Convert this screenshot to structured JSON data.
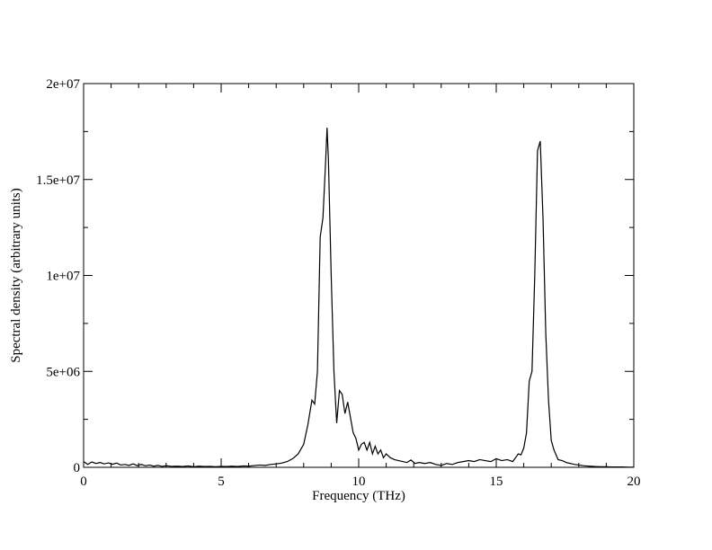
{
  "chart_data": {
    "type": "line",
    "title": "",
    "xlabel": "Frequency (THz)",
    "ylabel": "Spectral density (arbitrary units)",
    "xlim": [
      0,
      20
    ],
    "ylim": [
      0,
      20000000
    ],
    "grid": false,
    "x_ticks": [
      0,
      5,
      10,
      15,
      20
    ],
    "x_tick_labels": [
      "0",
      "5",
      "10",
      "15",
      "20"
    ],
    "y_ticks": [
      0,
      5000000,
      10000000,
      15000000,
      20000000
    ],
    "y_tick_labels": [
      "0",
      "5e+06",
      "1e+07",
      "1.5e+07",
      "2e+07"
    ],
    "x_minor_step": 1,
    "y_minor_step": 2500000,
    "line_color": "#000000",
    "series": [
      {
        "x": [
          0,
          0.15,
          0.3,
          0.45,
          0.6,
          0.75,
          0.9,
          1.05,
          1.2,
          1.35,
          1.5,
          1.65,
          1.8,
          1.95,
          2.1,
          2.25,
          2.4,
          2.55,
          2.7,
          2.85,
          3.0,
          3.2,
          3.4,
          3.6,
          3.8,
          4.0,
          4.2,
          4.4,
          4.6,
          4.8,
          5.0,
          5.2,
          5.4,
          5.6,
          5.8,
          6.0,
          6.2,
          6.4,
          6.6,
          6.8,
          7.0,
          7.2,
          7.4,
          7.6,
          7.8,
          8.0,
          8.15,
          8.3,
          8.4,
          8.5,
          8.6,
          8.7,
          8.8,
          8.85,
          8.9,
          9.0,
          9.1,
          9.2,
          9.3,
          9.4,
          9.5,
          9.6,
          9.7,
          9.8,
          9.9,
          10.0,
          10.1,
          10.2,
          10.3,
          10.4,
          10.5,
          10.6,
          10.7,
          10.8,
          10.9,
          11.0,
          11.15,
          11.3,
          11.45,
          11.6,
          11.75,
          11.9,
          12.05,
          12.2,
          12.4,
          12.6,
          12.8,
          13.0,
          13.2,
          13.4,
          13.6,
          13.8,
          14.0,
          14.2,
          14.4,
          14.6,
          14.8,
          15.0,
          15.2,
          15.4,
          15.6,
          15.8,
          15.9,
          16.0,
          16.1,
          16.2,
          16.3,
          16.4,
          16.5,
          16.6,
          16.7,
          16.8,
          16.9,
          17.0,
          17.1,
          17.25,
          17.4,
          17.55,
          17.7,
          17.85,
          18.0,
          18.2,
          18.4,
          18.6,
          18.8,
          19.0,
          19.2,
          19.4,
          19.6,
          19.8,
          20.0
        ],
        "values": [
          300000,
          150000,
          280000,
          200000,
          250000,
          180000,
          230000,
          160000,
          220000,
          120000,
          150000,
          100000,
          180000,
          90000,
          150000,
          80000,
          120000,
          60000,
          100000,
          50000,
          80000,
          50000,
          60000,
          40000,
          70000,
          30000,
          60000,
          40000,
          50000,
          30000,
          50000,
          40000,
          60000,
          40000,
          70000,
          60000,
          90000,
          120000,
          100000,
          150000,
          180000,
          220000,
          300000,
          450000,
          700000,
          1200000,
          2200000,
          3500000,
          3300000,
          5000000,
          12000000,
          13000000,
          16000000,
          17700000,
          16000000,
          10000000,
          5000000,
          2300000,
          4000000,
          3800000,
          2800000,
          3400000,
          2600000,
          1800000,
          1500000,
          900000,
          1200000,
          1300000,
          900000,
          1300000,
          700000,
          1100000,
          700000,
          900000,
          500000,
          700000,
          500000,
          400000,
          350000,
          300000,
          250000,
          380000,
          200000,
          250000,
          200000,
          250000,
          150000,
          100000,
          200000,
          150000,
          250000,
          300000,
          350000,
          300000,
          400000,
          350000,
          300000,
          450000,
          350000,
          400000,
          300000,
          700000,
          650000,
          1000000,
          1800000,
          4500000,
          5000000,
          10000000,
          16500000,
          17000000,
          13000000,
          7000000,
          3500000,
          1400000,
          900000,
          400000,
          350000,
          250000,
          200000,
          150000,
          120000,
          80000,
          60000,
          40000,
          30000,
          30000,
          20000,
          20000,
          20000,
          10000,
          10000
        ]
      }
    ]
  }
}
